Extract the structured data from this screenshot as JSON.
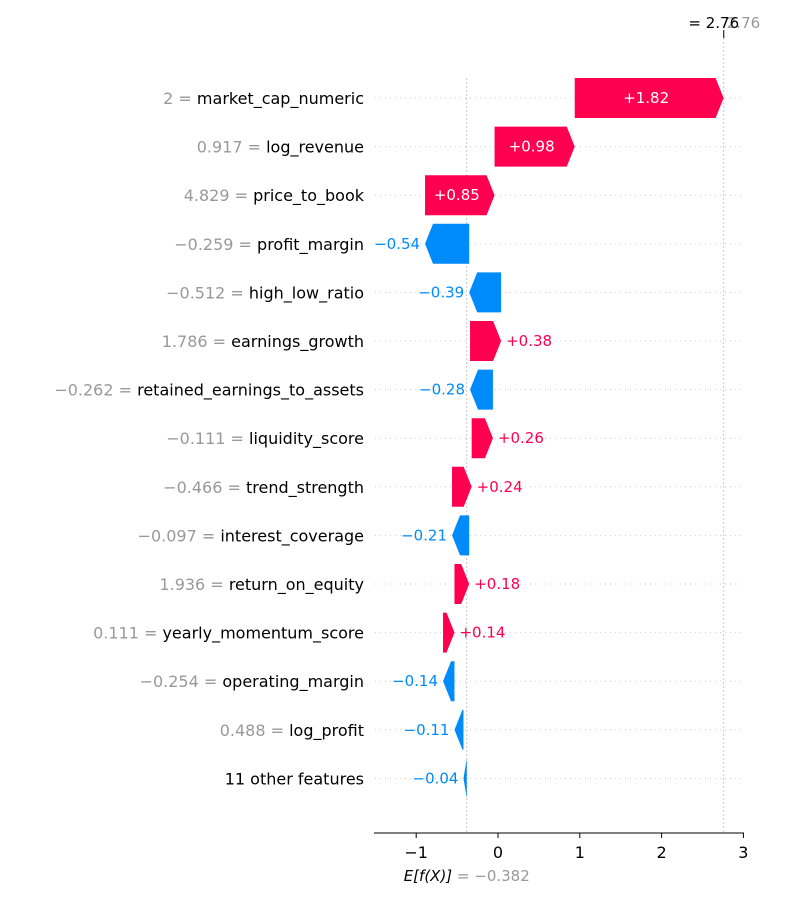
{
  "chart_data": {
    "type": "waterfall",
    "base_value": -0.382,
    "output_value": 2.76,
    "xlim": [
      -1.5,
      3.05
    ],
    "xticks": [
      -1,
      0,
      1,
      2,
      3
    ],
    "xtick_labels": [
      "−1",
      "0",
      "1",
      "2",
      "3"
    ],
    "expected_label_prefix": "E[f(X)]",
    "expected_label_value": "= −0.382",
    "output_label": "= 2.76",
    "output_label_ghost": "2.76",
    "colors": {
      "positive": "#ff0051",
      "negative": "#008bfb"
    },
    "features": [
      {
        "value_text": "2",
        "name": "market_cap_numeric",
        "shap": 1.82,
        "label": "+1.82"
      },
      {
        "value_text": "0.917",
        "name": "log_revenue",
        "shap": 0.98,
        "label": "+0.98"
      },
      {
        "value_text": "4.829",
        "name": "price_to_book",
        "shap": 0.85,
        "label": "+0.85"
      },
      {
        "value_text": "−0.259",
        "name": "profit_margin",
        "shap": -0.54,
        "label": "−0.54"
      },
      {
        "value_text": "−0.512",
        "name": "high_low_ratio",
        "shap": -0.39,
        "label": "−0.39"
      },
      {
        "value_text": "1.786",
        "name": "earnings_growth",
        "shap": 0.38,
        "label": "+0.38"
      },
      {
        "value_text": "−0.262",
        "name": "retained_earnings_to_assets",
        "shap": -0.28,
        "label": "−0.28"
      },
      {
        "value_text": "−0.111",
        "name": "liquidity_score",
        "shap": 0.26,
        "label": "+0.26"
      },
      {
        "value_text": "−0.466",
        "name": "trend_strength",
        "shap": 0.24,
        "label": "+0.24"
      },
      {
        "value_text": "−0.097",
        "name": "interest_coverage",
        "shap": -0.21,
        "label": "−0.21"
      },
      {
        "value_text": "1.936",
        "name": "return_on_equity",
        "shap": 0.18,
        "label": "+0.18"
      },
      {
        "value_text": "0.111",
        "name": "yearly_momentum_score",
        "shap": 0.14,
        "label": "+0.14"
      },
      {
        "value_text": "−0.254",
        "name": "operating_margin",
        "shap": -0.14,
        "label": "−0.14"
      },
      {
        "value_text": "0.488",
        "name": "log_profit",
        "shap": -0.11,
        "label": "−0.11"
      },
      {
        "value_text": "",
        "name": "11 other features",
        "shap": -0.04,
        "label": "−0.04"
      }
    ]
  }
}
